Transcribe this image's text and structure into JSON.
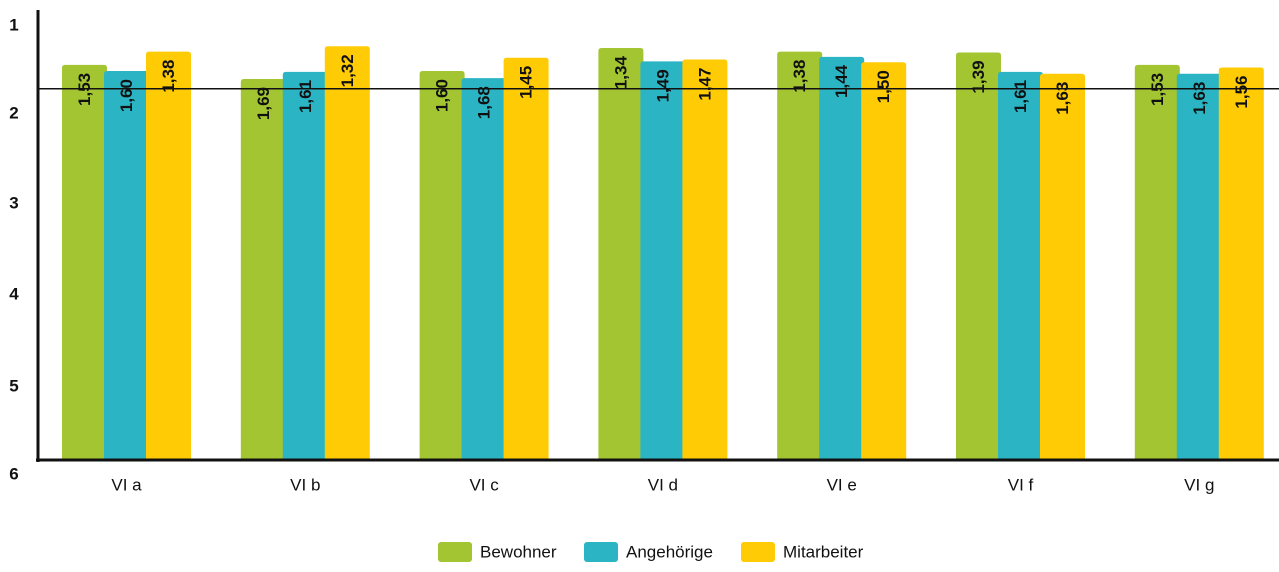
{
  "chart_data": {
    "type": "bar",
    "categories": [
      "VI a",
      "VI b",
      "VI c",
      "VI d",
      "VI e",
      "VI f",
      "VI g"
    ],
    "series": [
      {
        "name": "Bewohner",
        "color": "#a2c531",
        "values": [
          1.53,
          1.69,
          1.6,
          1.34,
          1.38,
          1.39,
          1.53
        ],
        "labels": [
          "1,53",
          "1,69",
          "1,60",
          "1,34",
          "1,38",
          "1,39",
          "1,53"
        ]
      },
      {
        "name": "Angehörige",
        "color": "#2bb5c4",
        "values": [
          1.6,
          1.61,
          1.68,
          1.49,
          1.44,
          1.61,
          1.63
        ],
        "labels": [
          "1,60",
          "1,61",
          "1,68",
          "1,49",
          "1,44",
          "1,61",
          "1,63"
        ]
      },
      {
        "name": "Mitarbeiter",
        "color": "#ffcb05",
        "values": [
          1.38,
          1.32,
          1.45,
          1.47,
          1.5,
          1.63,
          1.56
        ],
        "labels": [
          "1,38",
          "1,32",
          "1,45",
          "1,47",
          "1,50",
          "1,63",
          "1,56"
        ]
      }
    ],
    "ylim": [
      1,
      6
    ],
    "y_inverted": true,
    "yticks": [
      "1",
      "2",
      "3",
      "4",
      "5",
      "6"
    ],
    "reference_line": 1.8,
    "legend_position": "bottom-center",
    "grid": false
  }
}
